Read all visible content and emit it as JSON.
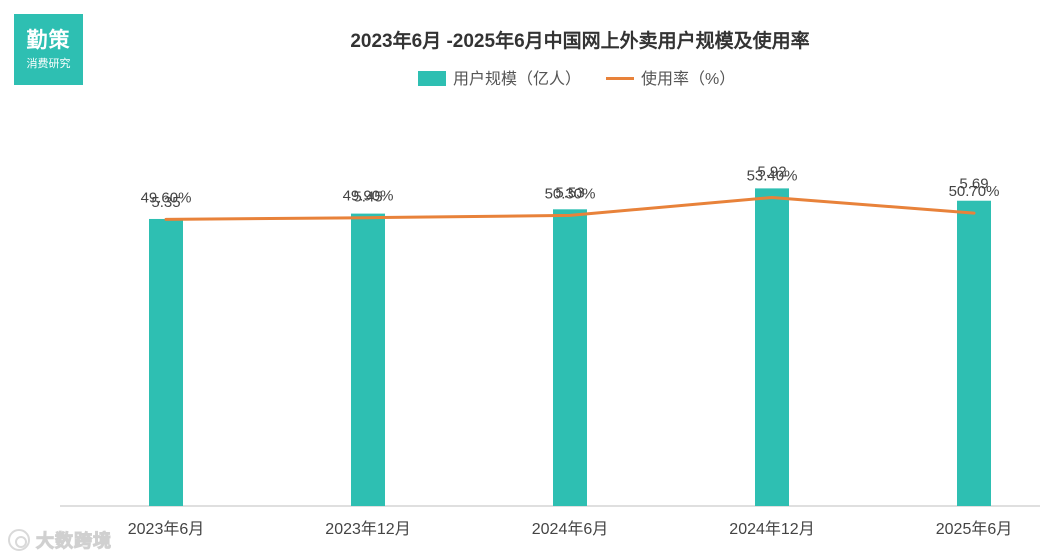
{
  "logo": {
    "main": "勤策",
    "sub": "消费研究"
  },
  "watermark": {
    "icon": "brand-swirl-icon",
    "text": "大数跨境"
  },
  "colors": {
    "bar": "#2ebfb2",
    "line": "#e8823a",
    "axis": "#bfbfbf"
  },
  "chart_data": {
    "type": "bar",
    "title": "2023年6月 -2025年6月中国网上外卖用户规模及使用率",
    "categories": [
      "2023年6月",
      "2023年12月",
      "2024年6月",
      "2024年12月",
      "2025年6月"
    ],
    "series": [
      {
        "name": "用户规模（亿人）",
        "type": "bar",
        "values": [
          5.35,
          5.45,
          5.53,
          5.92,
          5.69
        ],
        "labels": [
          "5.35",
          "5.45",
          "5.53",
          "5.92",
          "5.69"
        ]
      },
      {
        "name": "使用率（%）",
        "type": "line",
        "values": [
          49.6,
          49.9,
          50.3,
          53.4,
          50.7
        ],
        "labels": [
          "49.60%",
          "49.90%",
          "50.30%",
          "53.40%",
          "50.70%"
        ]
      }
    ],
    "ylim_bar": [
      0,
      6.3
    ],
    "ylim_line": [
      0,
      58.5
    ],
    "grid": false,
    "legend": "top-center"
  }
}
